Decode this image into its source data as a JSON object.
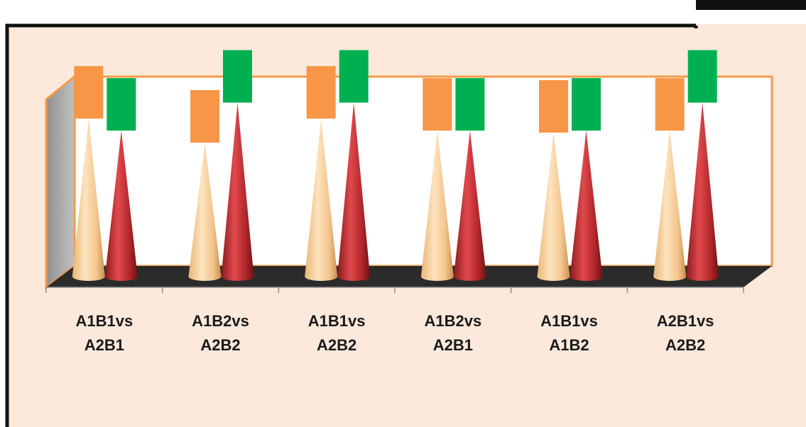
{
  "colors": {
    "background": "#fce9db",
    "plot_fill": "#ffffff",
    "plot_border": "#f39a4a",
    "floor": "#2b2b2b",
    "side_wall": "#a9a9a9",
    "series1_cone": "#f6c88f",
    "series2_cone": "#b2272c",
    "series1_label_box": "#f79646",
    "series2_label_box": "#00b050"
  },
  "chart_data": {
    "type": "bar",
    "shape": "3d-cone",
    "categories": [
      [
        "A1B1vs",
        "A2B1"
      ],
      [
        "A1B2vs",
        "A2B2"
      ],
      [
        "A1B1vs",
        "A2B2"
      ],
      [
        "A1B2vs",
        "A2B1"
      ],
      [
        "A1B1vs",
        "A1B2"
      ],
      [
        "A2B1vs",
        "A2B2"
      ]
    ],
    "series": [
      {
        "values": [
          0.79,
          0.67,
          0.79,
          0.73,
          0.72,
          0.73
        ],
        "data_label": ""
      },
      {
        "values": [
          0.73,
          0.87,
          0.87,
          0.73,
          0.73,
          0.87
        ],
        "data_label": ""
      }
    ],
    "ylim": [
      0,
      1
    ],
    "grid": false,
    "legend": "none",
    "title": "",
    "xlabel": "",
    "ylabel": ""
  }
}
